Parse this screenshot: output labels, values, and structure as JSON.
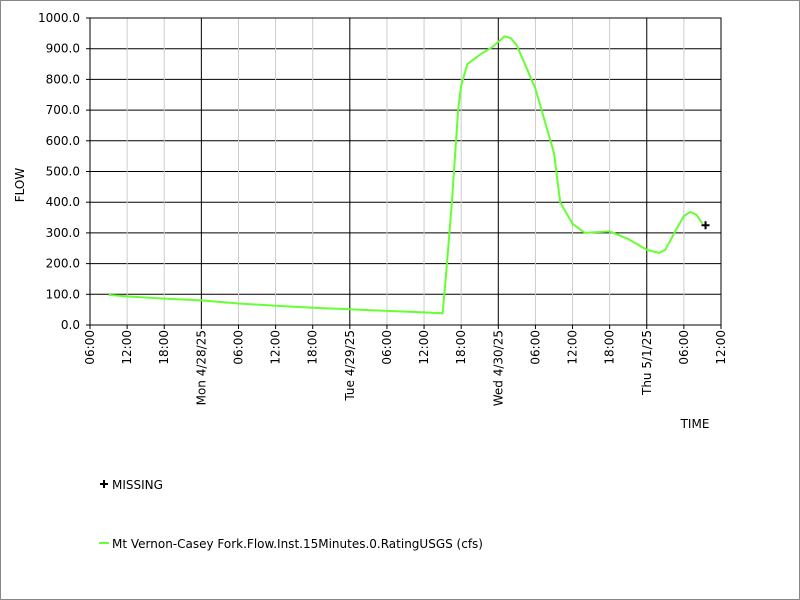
{
  "chart_data": {
    "type": "line",
    "ylabel": "FLOW",
    "xlabel": "TIME",
    "xlim": [
      "2025-04-27 06:00",
      "2025-05-01 12:00"
    ],
    "xticks": [
      {
        "value": "2025-04-27 06:00",
        "label": "06:00"
      },
      {
        "value": "2025-04-27 12:00",
        "label": "12:00"
      },
      {
        "value": "2025-04-27 18:00",
        "label": "18:00"
      },
      {
        "value": "2025-04-28 00:00",
        "label": "Mon 4/28/25"
      },
      {
        "value": "2025-04-28 06:00",
        "label": "06:00"
      },
      {
        "value": "2025-04-28 12:00",
        "label": "12:00"
      },
      {
        "value": "2025-04-28 18:00",
        "label": "18:00"
      },
      {
        "value": "2025-04-29 00:00",
        "label": "Tue 4/29/25"
      },
      {
        "value": "2025-04-29 06:00",
        "label": "06:00"
      },
      {
        "value": "2025-04-29 12:00",
        "label": "12:00"
      },
      {
        "value": "2025-04-29 18:00",
        "label": "18:00"
      },
      {
        "value": "2025-04-30 00:00",
        "label": "Wed 4/30/25"
      },
      {
        "value": "2025-04-30 06:00",
        "label": "06:00"
      },
      {
        "value": "2025-04-30 12:00",
        "label": "12:00"
      },
      {
        "value": "2025-04-30 18:00",
        "label": "18:00"
      },
      {
        "value": "2025-05-01 00:00",
        "label": "Thu 5/1/25"
      },
      {
        "value": "2025-05-01 06:00",
        "label": "06:00"
      },
      {
        "value": "2025-05-01 12:00",
        "label": "12:00"
      }
    ],
    "ylim": [
      0,
      1000
    ],
    "yticks": [
      {
        "value": 0,
        "label": "0.0"
      },
      {
        "value": 100,
        "label": "100.0"
      },
      {
        "value": 200,
        "label": "200.0"
      },
      {
        "value": 300,
        "label": "300.0"
      },
      {
        "value": 400,
        "label": "400.0"
      },
      {
        "value": 500,
        "label": "500.0"
      },
      {
        "value": 600,
        "label": "600.0"
      },
      {
        "value": 700,
        "label": "700.0"
      },
      {
        "value": 800,
        "label": "800.0"
      },
      {
        "value": 900,
        "label": "900.0"
      },
      {
        "value": 1000,
        "label": "1000.0"
      }
    ],
    "grid": true,
    "x": [
      "2025-04-27 09:00",
      "2025-04-27 12:00",
      "2025-04-27 18:00",
      "2025-04-28 00:00",
      "2025-04-28 06:00",
      "2025-04-28 12:00",
      "2025-04-28 18:00",
      "2025-04-29 00:00",
      "2025-04-29 06:00",
      "2025-04-29 12:00",
      "2025-04-29 15:00",
      "2025-04-29 15:30",
      "2025-04-29 16:30",
      "2025-04-29 17:30",
      "2025-04-29 18:00",
      "2025-04-29 19:00",
      "2025-04-29 21:00",
      "2025-04-29 23:00",
      "2025-04-30 01:00",
      "2025-04-30 02:00",
      "2025-04-30 03:00",
      "2025-04-30 06:00",
      "2025-04-30 09:00",
      "2025-04-30 10:00",
      "2025-04-30 12:00",
      "2025-04-30 14:00",
      "2025-04-30 18:00",
      "2025-04-30 21:00",
      "2025-05-01 00:00",
      "2025-05-01 02:00",
      "2025-05-01 03:00",
      "2025-05-01 05:00",
      "2025-05-01 06:00",
      "2025-05-01 07:00",
      "2025-05-01 08:00",
      "2025-05-01 09:00"
    ],
    "series": [
      {
        "name": "Mt Vernon-Casey Fork.Flow.Inst.15Minutes.0.RatingUSGS (cfs)",
        "color": "#66ff33",
        "values": [
          98,
          93,
          86,
          80,
          70,
          63,
          56,
          51,
          46,
          41,
          38,
          150,
          400,
          700,
          780,
          850,
          880,
          905,
          940,
          935,
          910,
          770,
          560,
          400,
          330,
          300,
          305,
          280,
          245,
          235,
          245,
          320,
          355,
          368,
          360,
          330
        ]
      }
    ],
    "missing": {
      "name": "MISSING",
      "x": [
        "2025-05-01 09:30"
      ],
      "values": [
        325
      ]
    }
  }
}
